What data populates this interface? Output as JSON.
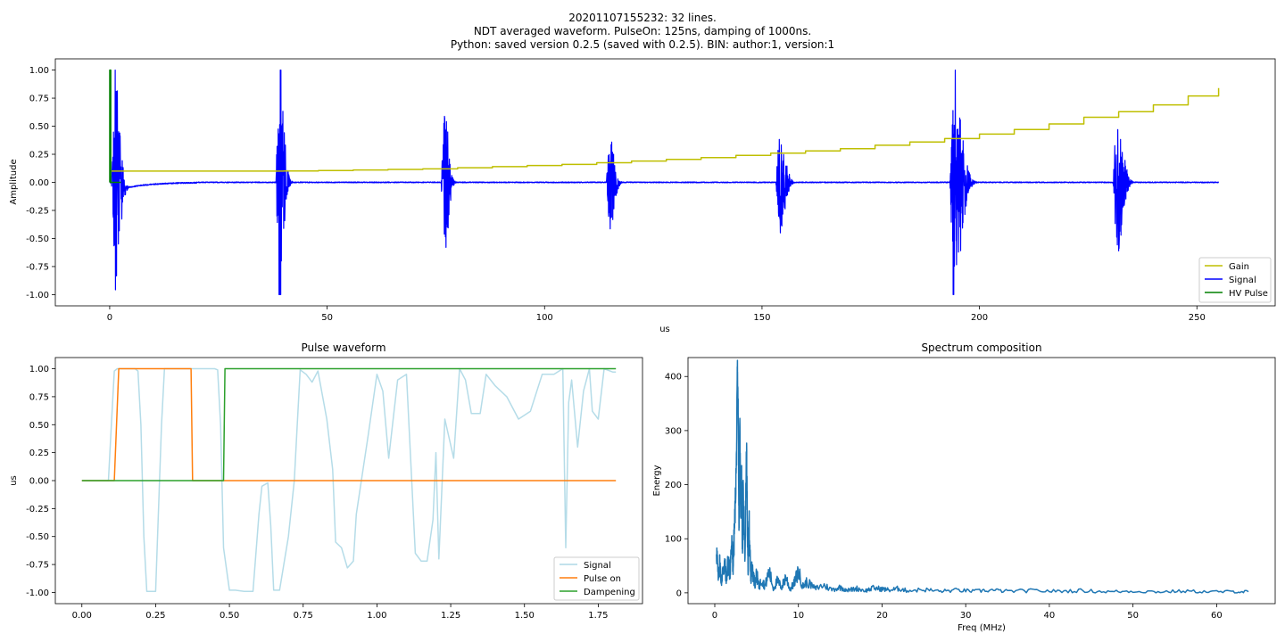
{
  "figure": {
    "title_lines": [
      "20201107155232: 32 lines.",
      "NDT averaged waveform. PulseOn: 125ns, damping of 1000ns.",
      "Python: saved version 0.2.5 (saved with 0.2.5). BIN: author:1, version:1"
    ]
  },
  "colors": {
    "gain": "#bfbf00",
    "signal_top": "#0000ff",
    "hv_pulse": "#008000",
    "signal_bottom": "#add8e6",
    "pulse_on": "#ff7f0e",
    "dampening": "#2ca02c",
    "spectrum": "#1f77b4"
  },
  "chart_data": [
    {
      "id": "top",
      "type": "line",
      "title": "",
      "xlabel": "us",
      "ylabel": "Amplitude",
      "xlim": [
        -12.5,
        268
      ],
      "ylim": [
        -1.1,
        1.1
      ],
      "xticks": [
        0,
        50,
        100,
        150,
        200,
        250
      ],
      "yticks": [
        -1.0,
        -0.75,
        -0.5,
        -0.25,
        0.0,
        0.25,
        0.5,
        0.75,
        1.0
      ],
      "legend": [
        "Gain",
        "Signal",
        "HV Pulse"
      ],
      "legend_position": "lower-right",
      "echo_bursts": [
        {
          "center": 1.2,
          "amplitude": 1.0,
          "width": 1.6
        },
        {
          "center": 39.0,
          "amplitude": 1.0,
          "width": 1.5
        },
        {
          "center": 77.0,
          "amplitude": 0.67,
          "width": 1.3
        },
        {
          "center": 115.0,
          "amplitude": 0.45,
          "width": 1.5
        },
        {
          "center": 154.0,
          "amplitude": 0.5,
          "width": 1.8
        },
        {
          "center": 194.0,
          "amplitude": 1.0,
          "width": 2.6
        },
        {
          "center": 231.5,
          "amplitude": 0.66,
          "width": 2.0
        }
      ],
      "gain_steps": {
        "x": [
          0,
          8,
          16,
          24,
          32,
          40,
          48,
          56,
          64,
          72,
          80,
          88,
          96,
          104,
          112,
          120,
          128,
          136,
          144,
          152,
          160,
          168,
          176,
          184,
          192,
          200,
          208,
          216,
          224,
          232,
          240,
          248,
          255
        ],
        "y": [
          0.1,
          0.1,
          0.1,
          0.1,
          0.1,
          0.102,
          0.105,
          0.11,
          0.115,
          0.12,
          0.13,
          0.14,
          0.15,
          0.16,
          0.175,
          0.19,
          0.205,
          0.22,
          0.24,
          0.26,
          0.28,
          0.3,
          0.33,
          0.36,
          0.39,
          0.43,
          0.47,
          0.52,
          0.58,
          0.63,
          0.69,
          0.77,
          0.84
        ]
      },
      "hv_pulse": {
        "x": [
          0,
          0.02,
          0.02,
          0.25,
          0.25,
          0.28,
          0.28,
          2.6
        ],
        "y": [
          0,
          0,
          1,
          1,
          0,
          0,
          0,
          0
        ]
      }
    },
    {
      "id": "pulse",
      "type": "line",
      "title": "Pulse waveform",
      "xlabel": "",
      "ylabel": "us",
      "xlim": [
        -0.09,
        1.9
      ],
      "ylim": [
        -1.1,
        1.1
      ],
      "xticks": [
        0.0,
        0.25,
        0.5,
        0.75,
        1.0,
        1.25,
        1.5,
        1.75
      ],
      "yticks": [
        -1.0,
        -0.75,
        -0.5,
        -0.25,
        0.0,
        0.25,
        0.5,
        0.75,
        1.0
      ],
      "legend": [
        "Signal",
        "Pulse on",
        "Dampening"
      ],
      "legend_position": "lower-right",
      "series": [
        {
          "name": "Signal",
          "x": [
            0,
            0.09,
            0.1,
            0.11,
            0.12,
            0.13,
            0.15,
            0.17,
            0.18,
            0.19,
            0.2,
            0.21,
            0.22,
            0.25,
            0.27,
            0.28,
            0.29,
            0.3,
            0.32,
            0.38,
            0.42,
            0.45,
            0.46,
            0.47,
            0.48,
            0.5,
            0.52,
            0.55,
            0.58,
            0.6,
            0.61,
            0.63,
            0.64,
            0.65,
            0.67,
            0.7,
            0.72,
            0.73,
            0.74,
            0.76,
            0.78,
            0.8,
            0.83,
            0.85,
            0.86,
            0.88,
            0.9,
            0.92,
            0.93,
            0.95,
            0.97,
            1.0,
            1.02,
            1.04,
            1.07,
            1.1,
            1.13,
            1.15,
            1.17,
            1.19,
            1.2,
            1.21,
            1.23,
            1.26,
            1.28,
            1.3,
            1.32,
            1.35,
            1.37,
            1.4,
            1.44,
            1.48,
            1.52,
            1.56,
            1.6,
            1.63,
            1.64,
            1.65,
            1.66,
            1.68,
            1.7,
            1.72,
            1.73,
            1.75,
            1.77,
            1.8,
            1.81
          ],
          "y": [
            0,
            0,
            0.5,
            0.98,
            1.0,
            1.0,
            1.0,
            1.0,
            1.0,
            0.98,
            0.5,
            -0.5,
            -0.99,
            -0.99,
            0.5,
            1.0,
            1.0,
            1.0,
            1.0,
            1.0,
            1.0,
            1.0,
            0.99,
            0.5,
            -0.6,
            -0.98,
            -0.98,
            -0.99,
            -0.99,
            -0.3,
            -0.05,
            -0.02,
            -0.4,
            -0.98,
            -0.98,
            -0.5,
            0.0,
            0.5,
            0.99,
            0.95,
            0.88,
            0.98,
            0.55,
            0.1,
            -0.55,
            -0.6,
            -0.78,
            -0.72,
            -0.3,
            0.05,
            0.4,
            0.95,
            0.8,
            0.2,
            0.9,
            0.95,
            -0.65,
            -0.72,
            -0.72,
            -0.35,
            0.25,
            -0.7,
            0.55,
            0.2,
            1.0,
            0.9,
            0.6,
            0.6,
            0.95,
            0.85,
            0.75,
            0.55,
            0.62,
            0.95,
            0.95,
            1.0,
            -0.6,
            0.7,
            0.9,
            0.3,
            0.8,
            1.0,
            0.62,
            0.55,
            1.0,
            0.97,
            0.97
          ]
        },
        {
          "name": "Pulse on",
          "x": [
            0,
            0.11,
            0.125,
            0.37,
            0.375,
            1.81
          ],
          "y": [
            0,
            0,
            1,
            1,
            0,
            0
          ]
        },
        {
          "name": "Dampening",
          "x": [
            0,
            0.48,
            0.485,
            1.81
          ],
          "y": [
            0,
            0,
            1,
            1
          ]
        }
      ]
    },
    {
      "id": "spectrum",
      "type": "line",
      "title": "Spectrum composition",
      "xlabel": "Freq (MHz)",
      "ylabel": "Energy",
      "xlim": [
        -3.2,
        67.0
      ],
      "ylim": [
        -20,
        435
      ],
      "xticks": [
        0,
        10,
        20,
        30,
        40,
        50,
        60
      ],
      "yticks": [
        0,
        100,
        200,
        300,
        400
      ],
      "legend": [],
      "series": [
        {
          "name": "Spectrum",
          "x": [
            0.2,
            0.4,
            0.6,
            0.8,
            1.0,
            1.2,
            1.4,
            1.6,
            1.8,
            2.0,
            2.2,
            2.4,
            2.6,
            2.7,
            2.8,
            2.9,
            3.0,
            3.1,
            3.2,
            3.3,
            3.4,
            3.6,
            3.8,
            3.9,
            4.0,
            4.1,
            4.3,
            4.5,
            4.8,
            5.0,
            5.3,
            5.6,
            6.0,
            6.5,
            7.0,
            7.5,
            8.0,
            8.5,
            9.0,
            9.5,
            10.0,
            10.5,
            11.0,
            12.0,
            13.0,
            14.0,
            15.0,
            16.0,
            17.0,
            18.0,
            19.0,
            20.0,
            21.0,
            22.0,
            23.0,
            25.0,
            27.0,
            29.0,
            31.0,
            33.0,
            35.0,
            38.0,
            41.0,
            44.0,
            47.0,
            50.0,
            53.0,
            56.0,
            59.0,
            62.0,
            63.8
          ],
          "y": [
            85,
            30,
            55,
            20,
            45,
            50,
            25,
            60,
            35,
            90,
            50,
            140,
            250,
            415,
            330,
            120,
            300,
            150,
            230,
            80,
            190,
            60,
            265,
            120,
            40,
            130,
            30,
            45,
            15,
            35,
            10,
            25,
            12,
            40,
            8,
            22,
            10,
            30,
            6,
            18,
            40,
            12,
            20,
            8,
            14,
            6,
            10,
            5,
            8,
            4,
            9,
            7,
            5,
            8,
            4,
            6,
            3,
            5,
            3,
            5,
            3,
            4,
            3,
            4,
            2,
            3,
            2,
            3,
            2,
            2,
            2
          ]
        }
      ]
    }
  ]
}
